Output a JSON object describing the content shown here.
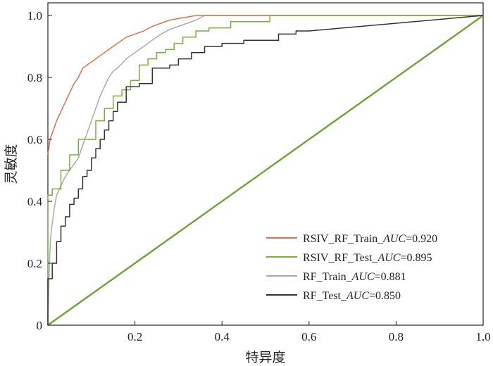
{
  "chart_data": {
    "type": "line",
    "title": "",
    "xlabel": "特异度",
    "ylabel": "灵敏度",
    "xlim": [
      0,
      1
    ],
    "ylim": [
      0,
      1
    ],
    "x_ticks": [
      0.2,
      0.4,
      0.6,
      0.8,
      1.0
    ],
    "x_tick_labels": [
      "0.2",
      "0.4",
      "0.6",
      "0.8",
      "1.0"
    ],
    "y_ticks": [
      0,
      0.2,
      0.4,
      0.6,
      0.8,
      1.0
    ],
    "y_tick_labels": [
      "0",
      "0.2",
      "0.4",
      "0.6",
      "0.8",
      "1.0"
    ],
    "grid": false,
    "legend_position": "bottom-right",
    "series": [
      {
        "name": "RSIV_RF_Train",
        "auc_label": "AUC",
        "auc_value": "=0.920",
        "color": "#d6744f",
        "x": [
          0,
          0.005,
          0.01,
          0.02,
          0.03,
          0.04,
          0.05,
          0.06,
          0.07,
          0.08,
          0.09,
          0.1,
          0.11,
          0.12,
          0.13,
          0.14,
          0.15,
          0.16,
          0.18,
          0.2,
          0.22,
          0.24,
          0.26,
          0.28,
          0.3,
          0.32,
          0.34,
          1.0
        ],
        "y": [
          0.55,
          0.6,
          0.62,
          0.66,
          0.69,
          0.72,
          0.75,
          0.78,
          0.8,
          0.83,
          0.84,
          0.85,
          0.86,
          0.87,
          0.88,
          0.89,
          0.9,
          0.91,
          0.93,
          0.94,
          0.95,
          0.965,
          0.975,
          0.985,
          0.99,
          0.995,
          1.0,
          1.0
        ]
      },
      {
        "name": "RSIV_RF_Test",
        "auc_label": "AUC",
        "auc_value": "=0.895",
        "color": "#7aaf3e",
        "x": [
          0,
          0.0,
          0.01,
          0.01,
          0.03,
          0.03,
          0.05,
          0.05,
          0.07,
          0.07,
          0.11,
          0.11,
          0.13,
          0.13,
          0.15,
          0.15,
          0.17,
          0.17,
          0.19,
          0.19,
          0.21,
          0.21,
          0.23,
          0.23,
          0.25,
          0.25,
          0.27,
          0.27,
          0.29,
          0.29,
          0.31,
          0.31,
          0.34,
          0.34,
          0.37,
          0.37,
          0.42,
          0.42,
          0.51,
          0.51,
          1.0
        ],
        "y": [
          0,
          0.42,
          0.42,
          0.44,
          0.44,
          0.5,
          0.5,
          0.55,
          0.55,
          0.6,
          0.6,
          0.66,
          0.66,
          0.7,
          0.7,
          0.74,
          0.74,
          0.76,
          0.76,
          0.79,
          0.79,
          0.84,
          0.84,
          0.86,
          0.86,
          0.88,
          0.88,
          0.89,
          0.89,
          0.91,
          0.91,
          0.93,
          0.93,
          0.95,
          0.95,
          0.96,
          0.96,
          0.98,
          0.98,
          1.0,
          1.0
        ]
      },
      {
        "name": "RF_Train",
        "auc_label": "AUC",
        "auc_value": "=0.881",
        "color": "#aaaaaa",
        "x": [
          0,
          0.003,
          0.006,
          0.01,
          0.015,
          0.02,
          0.03,
          0.04,
          0.05,
          0.06,
          0.07,
          0.08,
          0.09,
          0.1,
          0.11,
          0.12,
          0.13,
          0.14,
          0.15,
          0.16,
          0.18,
          0.2,
          0.22,
          0.24,
          0.26,
          0.28,
          0.3,
          0.32,
          0.34,
          0.36,
          1.0
        ],
        "y": [
          0,
          0.18,
          0.28,
          0.33,
          0.38,
          0.42,
          0.45,
          0.48,
          0.5,
          0.52,
          0.54,
          0.58,
          0.62,
          0.66,
          0.7,
          0.74,
          0.77,
          0.8,
          0.82,
          0.83,
          0.86,
          0.88,
          0.9,
          0.92,
          0.94,
          0.955,
          0.965,
          0.975,
          0.985,
          1.0,
          1.0
        ]
      },
      {
        "name": "RF_Test",
        "auc_label": "AUC",
        "auc_value": "=0.850",
        "color": "#333333",
        "x": [
          0,
          0.0,
          0.01,
          0.01,
          0.02,
          0.02,
          0.03,
          0.03,
          0.04,
          0.04,
          0.05,
          0.05,
          0.06,
          0.06,
          0.07,
          0.07,
          0.08,
          0.08,
          0.09,
          0.09,
          0.1,
          0.1,
          0.11,
          0.11,
          0.12,
          0.12,
          0.13,
          0.13,
          0.14,
          0.14,
          0.15,
          0.15,
          0.16,
          0.16,
          0.18,
          0.18,
          0.21,
          0.21,
          0.24,
          0.24,
          0.28,
          0.28,
          0.3,
          0.3,
          0.33,
          0.33,
          0.36,
          0.36,
          0.4,
          0.4,
          0.45,
          0.45,
          0.53,
          0.53,
          0.57,
          0.57,
          0.6,
          1.0
        ],
        "y": [
          0,
          0.15,
          0.15,
          0.2,
          0.2,
          0.27,
          0.27,
          0.32,
          0.32,
          0.35,
          0.35,
          0.39,
          0.39,
          0.41,
          0.41,
          0.44,
          0.44,
          0.48,
          0.48,
          0.5,
          0.5,
          0.54,
          0.54,
          0.57,
          0.57,
          0.6,
          0.6,
          0.63,
          0.63,
          0.66,
          0.66,
          0.69,
          0.69,
          0.72,
          0.72,
          0.77,
          0.77,
          0.78,
          0.78,
          0.83,
          0.83,
          0.84,
          0.84,
          0.86,
          0.86,
          0.88,
          0.88,
          0.9,
          0.9,
          0.91,
          0.91,
          0.92,
          0.92,
          0.94,
          0.94,
          0.95,
          0.95,
          1.0
        ]
      },
      {
        "name": "reference",
        "color": "#6fa33a",
        "x": [
          0,
          1
        ],
        "y": [
          0,
          1
        ]
      }
    ]
  }
}
